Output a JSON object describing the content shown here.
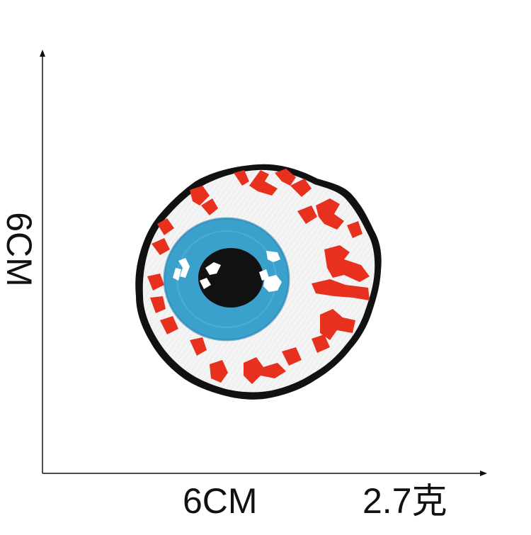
{
  "dimensions": {
    "height_label": "6CM",
    "width_label": "6CM",
    "weight_label": "2.7克"
  },
  "colors": {
    "background": "#ffffff",
    "axis": "#111111",
    "patch_border": "#111111",
    "sclera": "#f4f4f4",
    "vein": "#e8301f",
    "iris": "#3aa0cc",
    "iris_ring": "#2a7fb0",
    "pupil": "#111111",
    "highlight": "#ffffff"
  }
}
